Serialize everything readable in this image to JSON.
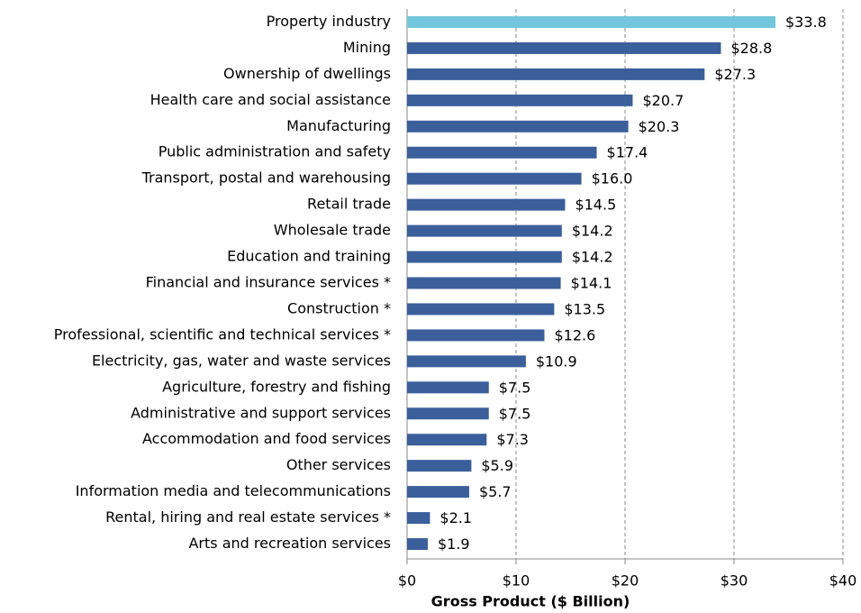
{
  "chart_data": {
    "type": "hbar",
    "xlabel": "Gross Product ($ Billion)",
    "categories": [
      "Property industry",
      "Mining",
      "Ownership of dwellings",
      "Health care and social assistance",
      "Manufacturing",
      "Public administration and safety",
      "Transport, postal and warehousing",
      "Retail trade",
      "Wholesale trade",
      "Education and training",
      "Financial and insurance services *",
      "Construction *",
      "Professional, scientific and technical services *",
      "Electricity, gas, water and waste services",
      "Agriculture, forestry and fishing",
      "Administrative and support services",
      "Accommodation and food services",
      "Other services",
      "Information media and telecommunications",
      "Rental, hiring and real estate services *",
      "Arts and recreation services"
    ],
    "values": [
      33.8,
      28.8,
      27.3,
      20.7,
      20.3,
      17.4,
      16.0,
      14.5,
      14.2,
      14.2,
      14.1,
      13.5,
      12.6,
      10.9,
      7.5,
      7.5,
      7.3,
      5.9,
      5.7,
      2.1,
      1.9
    ],
    "value_labels": [
      "$33.8",
      "$28.8",
      "$27.3",
      "$20.7",
      "$20.3",
      "$17.4",
      "$16.0",
      "$14.5",
      "$14.2",
      "$14.2",
      "$14.1",
      "$13.5",
      "$12.6",
      "$10.9",
      "$7.5",
      "$7.5",
      "$7.3",
      "$5.9",
      "$5.7",
      "$2.1",
      "$1.9"
    ],
    "colors": [
      "#72c7dc",
      "#3a5f9b",
      "#3a5f9b",
      "#3a5f9b",
      "#3a5f9b",
      "#3a5f9b",
      "#3a5f9b",
      "#3a5f9b",
      "#3a5f9b",
      "#3a5f9b",
      "#3a5f9b",
      "#3a5f9b",
      "#3a5f9b",
      "#3a5f9b",
      "#3a5f9b",
      "#3a5f9b",
      "#3a5f9b",
      "#3a5f9b",
      "#3a5f9b",
      "#3a5f9b",
      "#3a5f9b"
    ],
    "xlim": [
      0,
      40
    ],
    "xticks": [
      {
        "value": 0,
        "label": "$0"
      },
      {
        "value": 10,
        "label": "$10"
      },
      {
        "value": 20,
        "label": "$20"
      },
      {
        "value": 30,
        "label": "$30"
      },
      {
        "value": 40,
        "label": "$40"
      }
    ],
    "grid": true
  }
}
